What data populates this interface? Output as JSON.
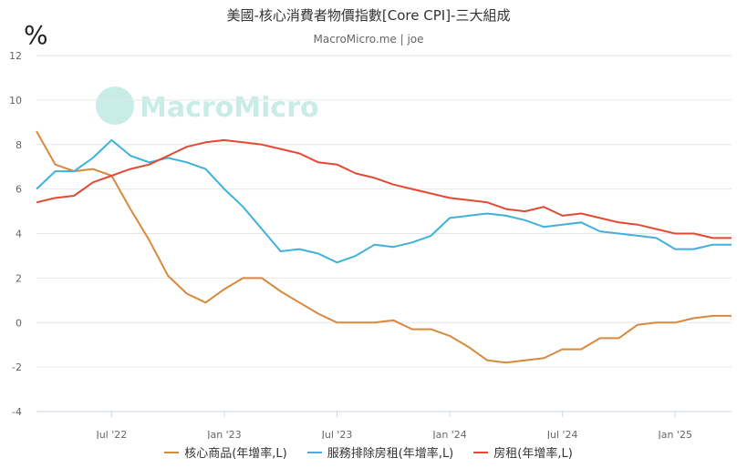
{
  "title": "美國-核心消費者物價指數[Core CPI]-三大組成",
  "subtitle": "MacroMicro.me | joe",
  "unit": "%",
  "watermark": "MacroMicro",
  "chart_data": {
    "type": "line",
    "ylim": [
      -4,
      12
    ],
    "yticks": [
      -4,
      -2,
      0,
      2,
      4,
      6,
      8,
      10,
      12
    ],
    "x_start": "2022-03",
    "x_end": "2025-04",
    "xticks": [
      {
        "date": "2022-07",
        "label": "Jul '22"
      },
      {
        "date": "2023-01",
        "label": "Jan '23"
      },
      {
        "date": "2023-07",
        "label": "Jul '23"
      },
      {
        "date": "2024-01",
        "label": "Jan '24"
      },
      {
        "date": "2024-07",
        "label": "Jul '24"
      },
      {
        "date": "2025-01",
        "label": "Jan '25"
      }
    ],
    "x": [
      "2022-03",
      "2022-04",
      "2022-05",
      "2022-06",
      "2022-07",
      "2022-08",
      "2022-09",
      "2022-10",
      "2022-11",
      "2022-12",
      "2023-01",
      "2023-02",
      "2023-03",
      "2023-04",
      "2023-05",
      "2023-06",
      "2023-07",
      "2023-08",
      "2023-09",
      "2023-10",
      "2023-11",
      "2023-12",
      "2024-01",
      "2024-02",
      "2024-03",
      "2024-04",
      "2024-05",
      "2024-06",
      "2024-07",
      "2024-08",
      "2024-09",
      "2024-10",
      "2024-11",
      "2024-12",
      "2025-01",
      "2025-02",
      "2025-03",
      "2025-04"
    ],
    "series": [
      {
        "name": "核心商品(年增率,L)",
        "color": "#d9893d",
        "values": [
          8.6,
          7.1,
          6.8,
          6.9,
          6.6,
          5.1,
          3.7,
          2.1,
          1.3,
          0.9,
          1.5,
          2.0,
          2.0,
          1.4,
          0.9,
          0.4,
          0.0,
          0.0,
          0.0,
          0.1,
          -0.3,
          -0.3,
          -0.6,
          -1.1,
          -1.7,
          -1.8,
          -1.7,
          -1.6,
          -1.2,
          -1.2,
          -0.7,
          -0.7,
          -0.1,
          0.0,
          0.0,
          0.2,
          0.3,
          0.3
        ]
      },
      {
        "name": "服務排除房租(年增率,L)",
        "color": "#3fb1db",
        "values": [
          6.0,
          6.8,
          6.8,
          7.4,
          8.2,
          7.5,
          7.2,
          7.4,
          7.2,
          6.9,
          6.0,
          5.2,
          4.2,
          3.2,
          3.3,
          3.1,
          2.7,
          3.0,
          3.5,
          3.4,
          3.6,
          3.9,
          4.7,
          4.8,
          4.9,
          4.8,
          4.6,
          4.3,
          4.4,
          4.5,
          4.1,
          4.0,
          3.9,
          3.8,
          3.3,
          3.3,
          3.5,
          3.5
        ]
      },
      {
        "name": "房租(年增率,L)",
        "color": "#e24a33",
        "values": [
          5.4,
          5.6,
          5.7,
          6.3,
          6.6,
          6.9,
          7.1,
          7.5,
          7.9,
          8.1,
          8.2,
          8.1,
          8.0,
          7.8,
          7.6,
          7.2,
          7.1,
          6.7,
          6.5,
          6.2,
          6.0,
          5.8,
          5.6,
          5.5,
          5.4,
          5.1,
          5.0,
          5.2,
          4.8,
          4.9,
          4.7,
          4.5,
          4.4,
          4.2,
          4.0,
          4.0,
          3.8,
          3.8
        ]
      }
    ]
  }
}
